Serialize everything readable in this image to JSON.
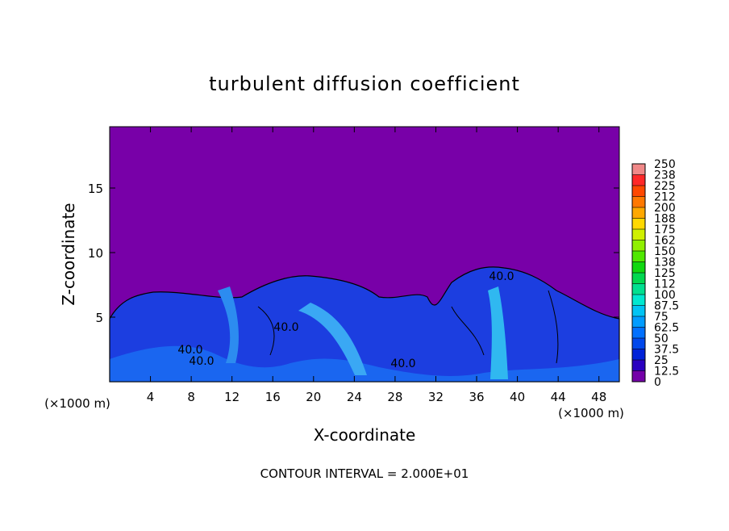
{
  "chart_data": {
    "type": "contour",
    "title": "turbulent diffusion coefficient",
    "x_label": "X-coordinate",
    "y_label": "Z-coordinate",
    "x_unit": "(×1000 m)",
    "y_unit": "(×1000 m)",
    "note": "CONTOUR INTERVAL = 2.000E+01",
    "contour_labels": [
      "40.0",
      "40.0",
      "40.0",
      "40.0",
      "40.0"
    ],
    "xlim": [
      0,
      50
    ],
    "xticks": [
      4,
      8,
      12,
      16,
      20,
      24,
      28,
      32,
      36,
      40,
      44,
      48
    ],
    "ylim": [
      0,
      19.75
    ],
    "yticks": [
      5,
      10,
      15
    ],
    "colorbar_ticks": [
      0,
      12.5,
      25,
      37.5,
      50,
      62.5,
      75,
      87.5,
      100,
      {
        "value": 112.5,
        "label": "112"
      },
      125,
      {
        "value": 137.5,
        "label": "138"
      },
      150,
      {
        "value": 162.5,
        "label": "162"
      },
      175,
      {
        "value": 187.5,
        "label": "188"
      },
      200,
      {
        "value": 212.5,
        "label": "212"
      },
      225,
      {
        "value": 237.5,
        "label": "238"
      },
      250
    ],
    "colorbar_colors": [
      "#7400a8",
      "#2a00c0",
      "#0022d8",
      "#0048ec",
      "#0070ff",
      "#009cff",
      "#00c4f4",
      "#00e8d0",
      "#00e090",
      "#00d850",
      "#10d810",
      "#50e800",
      "#90f000",
      "#d0f000",
      "#ffd800",
      "#ffa800",
      "#ff7800",
      "#ff4800",
      "#ff2828",
      "#f08888"
    ]
  }
}
